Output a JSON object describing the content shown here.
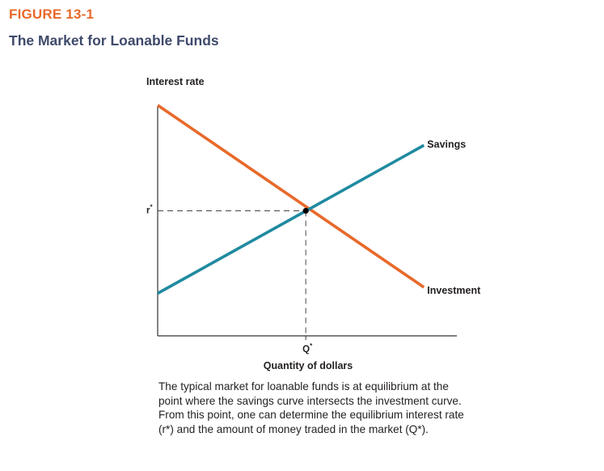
{
  "figure": {
    "label": "FIGURE 13-1",
    "title": "The Market for Loanable Funds",
    "caption": "The typical market for loanable funds is at equilibrium at the point where the savings curve intersects the investment curve. From this point, one can determine the equilibrium interest rate (r*) and the amount of money traded in the market (Q*)."
  },
  "colors": {
    "label": "#e8692a",
    "title": "#3f4a6b",
    "savings": "#1f8aa0",
    "investment": "#e8692a",
    "axis": "#333333",
    "equilibrium": "#000000"
  },
  "chart_data": {
    "type": "line",
    "title": "",
    "ylabel": "Interest rate",
    "xlabel": "Quantity of dollars",
    "xlim": [
      0,
      10
    ],
    "ylim": [
      0,
      10
    ],
    "grid": false,
    "series": [
      {
        "name": "Savings",
        "points": [
          [
            0,
            1.75
          ],
          [
            8.9,
            7.85
          ]
        ]
      },
      {
        "name": "Investment",
        "points": [
          [
            0,
            9.5
          ],
          [
            8.9,
            2.0
          ]
        ]
      }
    ],
    "equilibrium": {
      "x": 4.95,
      "y": 5.15,
      "x_label": "Q",
      "x_label_sup": "*",
      "y_label": "r",
      "y_label_sup": "*"
    }
  }
}
